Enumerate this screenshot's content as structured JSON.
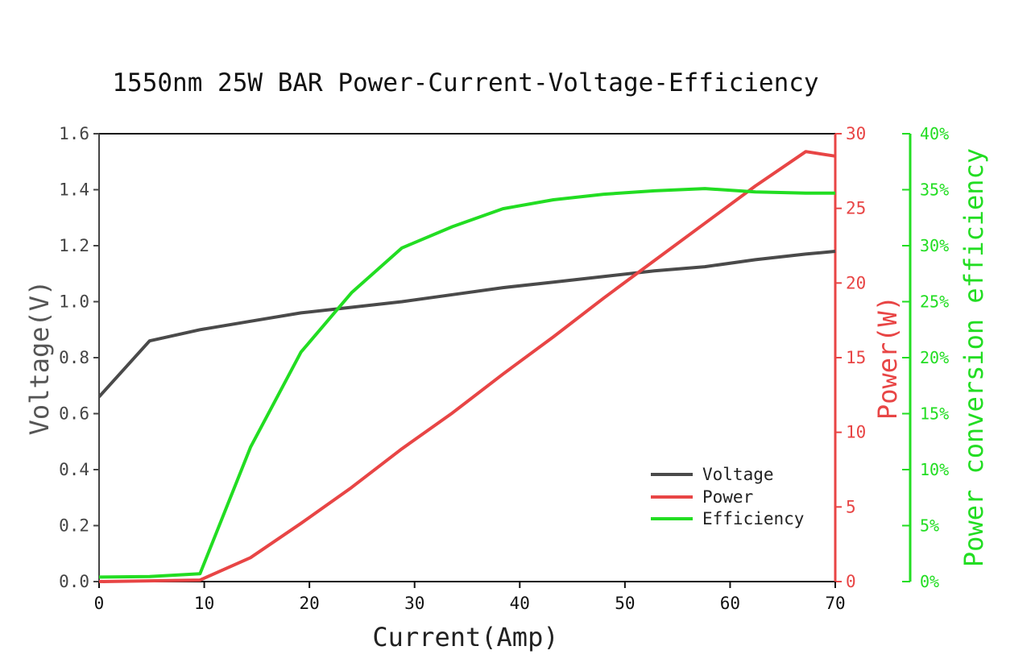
{
  "chart_data": {
    "type": "line",
    "title": "1550nm 25W BAR Power-Current-Voltage-Efficiency",
    "xlabel": "Current(Amp)",
    "xlim": [
      0,
      70
    ],
    "x_ticks": [
      "0",
      "10",
      "20",
      "30",
      "40",
      "50",
      "60",
      "70"
    ],
    "axes": {
      "left": {
        "label": "Voltage(V)",
        "ylim": [
          0,
          1.6
        ],
        "ticks": [
          "0.0",
          "0.2",
          "0.4",
          "0.6",
          "0.8",
          "1.0",
          "1.2",
          "1.4",
          "1.6"
        ],
        "color": "#333333"
      },
      "right": {
        "label": "Power(W)",
        "ylim": [
          0,
          30
        ],
        "ticks": [
          "0",
          "5",
          "10",
          "15",
          "20",
          "25",
          "30"
        ],
        "color": "#e84545"
      },
      "right2": {
        "label": "Power conversion efficiency",
        "ylim": [
          0,
          40
        ],
        "ticks": [
          "0%",
          "5%",
          "10%",
          "15%",
          "20%",
          "25%",
          "30%",
          "35%",
          "40%"
        ],
        "color": "#22dd22"
      }
    },
    "legend": {
      "position": "bottom-right",
      "entries": [
        "Voltage",
        "Power",
        "Efficiency"
      ]
    },
    "grid": false,
    "series": [
      {
        "name": "Voltage",
        "axis": "left",
        "color": "#4a4a4a",
        "x": [
          0,
          4.8,
          9.6,
          14.4,
          19.2,
          24,
          28.8,
          33.6,
          38.4,
          43.2,
          48,
          52.8,
          57.6,
          62.4,
          67.2,
          70
        ],
        "values": [
          0.66,
          0.86,
          0.9,
          0.93,
          0.96,
          0.98,
          1.0,
          1.025,
          1.05,
          1.07,
          1.09,
          1.11,
          1.125,
          1.15,
          1.17,
          1.18
        ]
      },
      {
        "name": "Power",
        "axis": "right",
        "color": "#e84545",
        "x": [
          0,
          9.6,
          14.4,
          19.2,
          24,
          28.8,
          33.6,
          38.4,
          43.2,
          48,
          52.8,
          57.6,
          62.4,
          67.2,
          70
        ],
        "values": [
          0,
          0.1,
          1.6,
          3.9,
          6.3,
          8.9,
          11.3,
          13.9,
          16.4,
          19.0,
          21.5,
          24.0,
          26.5,
          28.8,
          28.5
        ]
      },
      {
        "name": "Efficiency",
        "axis": "right2",
        "color": "#22dd22",
        "x": [
          0,
          4.8,
          9.6,
          14.4,
          19.2,
          24,
          28.8,
          33.6,
          38.4,
          43.2,
          48,
          52.8,
          57.6,
          62.4,
          67.2,
          70
        ],
        "values": [
          0.4,
          0.45,
          0.7,
          12,
          20.5,
          25.8,
          29.8,
          31.7,
          33.3,
          34.1,
          34.6,
          34.9,
          35.1,
          34.8,
          34.7,
          34.7
        ]
      }
    ]
  }
}
